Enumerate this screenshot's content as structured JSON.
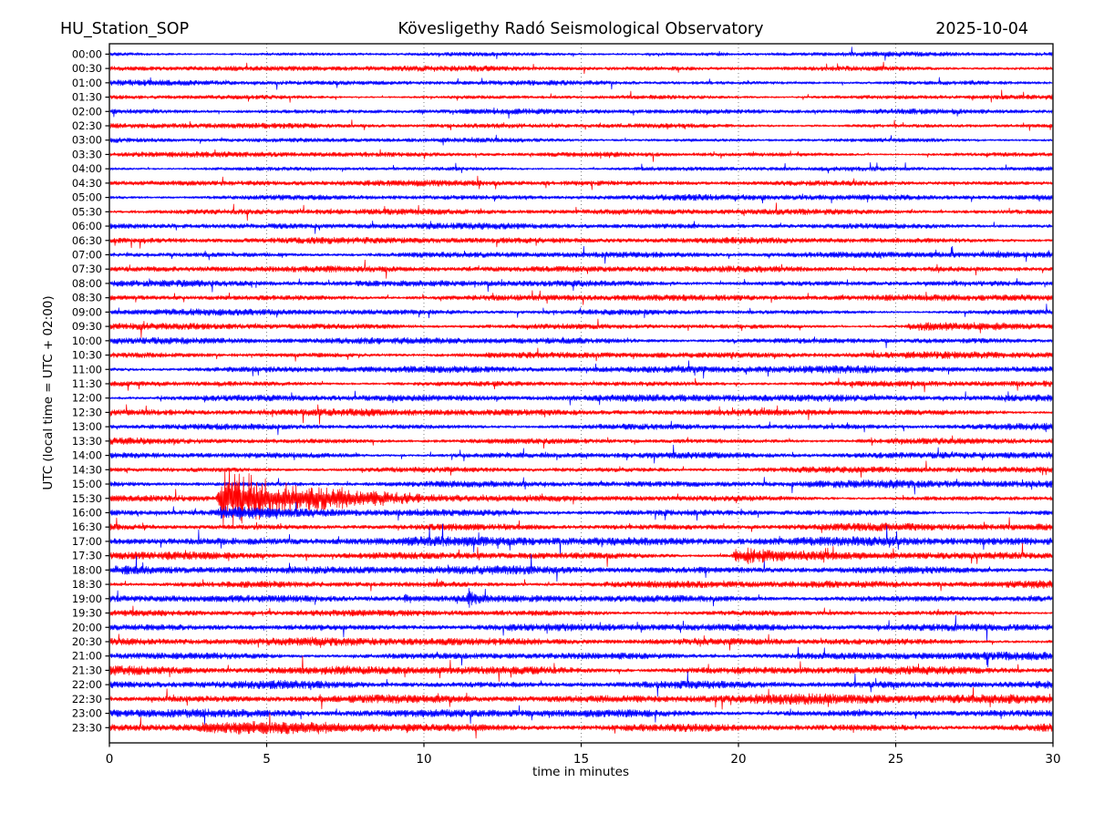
{
  "chart_data": {
    "type": "line",
    "subtype": "helicorder-day-plot",
    "station": "HU_Station_SOP",
    "title": "Kövesligethy Radó Seismological Observatory",
    "date": "2025-10-04",
    "xlabel": "time in minutes",
    "ylabel": "UTC (local time = UTC + 02:00)",
    "xlim": [
      0,
      30
    ],
    "x_ticks": [
      0,
      5,
      10,
      15,
      20,
      25,
      30
    ],
    "grid": "vertical-dotted",
    "minutes_per_line": 30,
    "trace_colors": {
      "hour": "#0000ff",
      "half_hour": "#ff0000"
    },
    "rows": [
      {
        "label": "00:00",
        "color": "#0000ff",
        "amp": 2.2
      },
      {
        "label": "00:30",
        "color": "#ff0000",
        "amp": 2.5
      },
      {
        "label": "01:00",
        "color": "#0000ff",
        "amp": 2.3
      },
      {
        "label": "01:30",
        "color": "#ff0000",
        "amp": 2.3
      },
      {
        "label": "02:00",
        "color": "#0000ff",
        "amp": 2.2
      },
      {
        "label": "02:30",
        "color": "#ff0000",
        "amp": 2.3
      },
      {
        "label": "03:00",
        "color": "#0000ff",
        "amp": 2.2
      },
      {
        "label": "03:30",
        "color": "#ff0000",
        "amp": 2.4
      },
      {
        "label": "04:00",
        "color": "#0000ff",
        "amp": 2.3
      },
      {
        "label": "04:30",
        "color": "#ff0000",
        "amp": 2.5
      },
      {
        "label": "05:00",
        "color": "#0000ff",
        "amp": 2.6
      },
      {
        "label": "05:30",
        "color": "#ff0000",
        "amp": 2.5
      },
      {
        "label": "06:00",
        "color": "#0000ff",
        "amp": 2.6
      },
      {
        "label": "06:30",
        "color": "#ff0000",
        "amp": 2.7
      },
      {
        "label": "07:00",
        "color": "#0000ff",
        "amp": 2.6
      },
      {
        "label": "07:30",
        "color": "#ff0000",
        "amp": 2.7
      },
      {
        "label": "08:00",
        "color": "#0000ff",
        "amp": 2.8
      },
      {
        "label": "08:30",
        "color": "#ff0000",
        "amp": 2.9
      },
      {
        "label": "09:00",
        "color": "#0000ff",
        "amp": 2.8
      },
      {
        "label": "09:30",
        "color": "#ff0000",
        "amp": 3.0,
        "events": [
          {
            "start": 25.3,
            "dur": 2.8,
            "peak": 3.2,
            "decay": 1.5
          }
        ]
      },
      {
        "label": "10:00",
        "color": "#0000ff",
        "amp": 3.1
      },
      {
        "label": "10:30",
        "color": "#ff0000",
        "amp": 2.9
      },
      {
        "label": "11:00",
        "color": "#0000ff",
        "amp": 3.1
      },
      {
        "label": "11:30",
        "color": "#ff0000",
        "amp": 3.0
      },
      {
        "label": "12:00",
        "color": "#0000ff",
        "amp": 3.1
      },
      {
        "label": "12:30",
        "color": "#ff0000",
        "amp": 3.0
      },
      {
        "label": "13:00",
        "color": "#0000ff",
        "amp": 3.2
      },
      {
        "label": "13:30",
        "color": "#ff0000",
        "amp": 3.1
      },
      {
        "label": "14:00",
        "color": "#0000ff",
        "amp": 3.4
      },
      {
        "label": "14:30",
        "color": "#ff0000",
        "amp": 3.1
      },
      {
        "label": "15:00",
        "color": "#0000ff",
        "amp": 3.4
      },
      {
        "label": "15:30",
        "color": "#ff0000",
        "amp": 3.1,
        "events": [
          {
            "start": 3.38,
            "dur": 1.7,
            "peak": 34,
            "decay": 3.2
          }
        ]
      },
      {
        "label": "16:00",
        "color": "#0000ff",
        "amp": 3.3,
        "events": [
          {
            "start": 3.3,
            "dur": 1.6,
            "peak": 5,
            "decay": 1.2
          }
        ]
      },
      {
        "label": "16:30",
        "color": "#ff0000",
        "amp": 3.7
      },
      {
        "label": "17:00",
        "color": "#0000ff",
        "amp": 3.9
      },
      {
        "label": "17:30",
        "color": "#ff0000",
        "amp": 3.9,
        "events": [
          {
            "start": 19.75,
            "dur": 1.1,
            "peak": 9.5,
            "decay": 2.0
          }
        ]
      },
      {
        "label": "18:00",
        "color": "#0000ff",
        "amp": 3.7
      },
      {
        "label": "18:30",
        "color": "#ff0000",
        "amp": 3.7
      },
      {
        "label": "19:00",
        "color": "#0000ff",
        "amp": 3.1,
        "events": [
          {
            "start": 9.3,
            "dur": 0.3,
            "peak": 4,
            "decay": 0.3
          },
          {
            "start": 11.35,
            "dur": 0.22,
            "peak": 9,
            "decay": 0.25
          }
        ]
      },
      {
        "label": "19:30",
        "color": "#ff0000",
        "amp": 2.9
      },
      {
        "label": "20:00",
        "color": "#0000ff",
        "amp": 3.1
      },
      {
        "label": "20:30",
        "color": "#ff0000",
        "amp": 3.5
      },
      {
        "label": "21:00",
        "color": "#0000ff",
        "amp": 3.9
      },
      {
        "label": "21:30",
        "color": "#ff0000",
        "amp": 4.7
      },
      {
        "label": "22:00",
        "color": "#0000ff",
        "amp": 4.3
      },
      {
        "label": "22:30",
        "color": "#ff0000",
        "amp": 4.7
      },
      {
        "label": "23:00",
        "color": "#0000ff",
        "amp": 3.7
      },
      {
        "label": "23:30",
        "color": "#ff0000",
        "amp": 4.5,
        "events": [
          {
            "start": 2.8,
            "dur": 6.5,
            "peak": 2.8,
            "decay": 2.0
          }
        ]
      }
    ]
  }
}
